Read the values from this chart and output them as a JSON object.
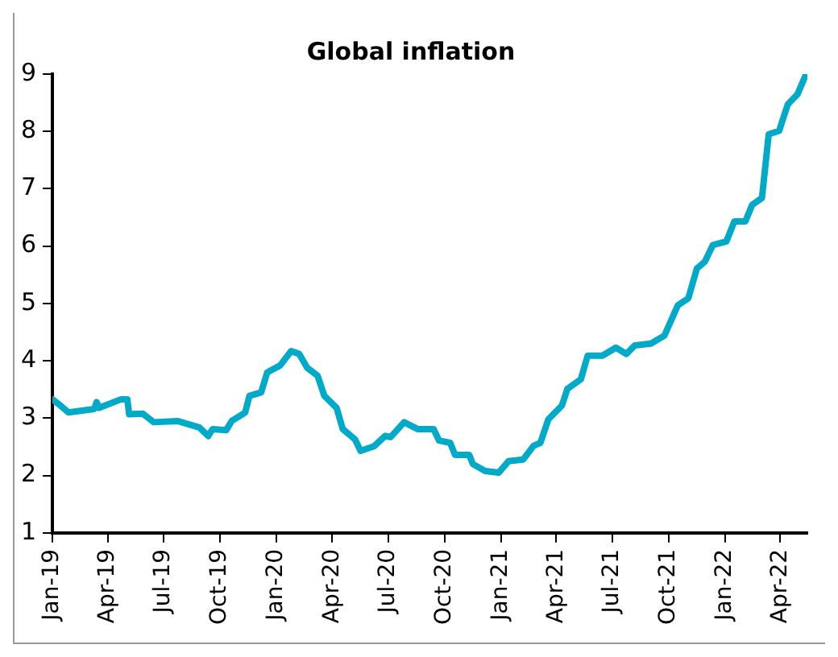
{
  "chart_data": {
    "type": "line",
    "title": "Global inflation",
    "x": [
      "2019-01-01",
      "2019-01-14",
      "2019-01-27",
      "2019-03-10",
      "2019-03-14",
      "2019-03-18",
      "2019-04-23",
      "2019-05-03",
      "2019-05-06",
      "2019-05-28",
      "2019-06-15",
      "2019-07-24",
      "2019-08-28",
      "2019-09-12",
      "2019-09-19",
      "2019-10-11",
      "2019-10-20",
      "2019-11-11",
      "2019-11-18",
      "2019-12-07",
      "2019-12-17",
      "2020-01-07",
      "2020-01-25",
      "2020-02-07",
      "2020-02-20",
      "2020-03-08",
      "2020-03-19",
      "2020-04-08",
      "2020-04-18",
      "2020-05-08",
      "2020-05-17",
      "2020-06-08",
      "2020-06-26",
      "2020-07-05",
      "2020-07-27",
      "2020-08-18",
      "2020-09-13",
      "2020-09-22",
      "2020-10-10",
      "2020-10-18",
      "2020-11-10",
      "2020-11-16",
      "2020-12-06",
      "2020-12-28",
      "2021-01-13",
      "2021-02-06",
      "2021-02-23",
      "2021-03-06",
      "2021-03-19",
      "2021-04-10",
      "2021-04-19",
      "2021-05-11",
      "2021-05-22",
      "2021-06-15",
      "2021-07-07",
      "2021-07-24",
      "2021-08-07",
      "2021-09-02",
      "2021-09-24",
      "2021-10-16",
      "2021-11-02",
      "2021-11-16",
      "2021-11-29",
      "2021-12-12",
      "2022-01-03",
      "2022-01-16",
      "2022-02-03",
      "2022-02-14",
      "2022-03-02",
      "2022-03-13",
      "2022-03-30",
      "2022-04-13",
      "2022-04-29",
      "2022-05-13"
    ],
    "series": [
      {
        "color": "#00aac8",
        "values": [
          3.33,
          3.22,
          3.1,
          3.16,
          3.28,
          3.18,
          3.33,
          3.33,
          3.07,
          3.08,
          2.93,
          2.95,
          2.84,
          2.69,
          2.81,
          2.79,
          2.95,
          3.1,
          3.39,
          3.45,
          3.8,
          3.92,
          4.17,
          4.12,
          3.88,
          3.74,
          3.39,
          3.18,
          2.81,
          2.63,
          2.43,
          2.51,
          2.69,
          2.67,
          2.93,
          2.81,
          2.81,
          2.61,
          2.57,
          2.36,
          2.36,
          2.2,
          2.08,
          2.05,
          2.25,
          2.28,
          2.52,
          2.57,
          2.98,
          3.22,
          3.51,
          3.68,
          4.09,
          4.09,
          4.23,
          4.12,
          4.27,
          4.3,
          4.44,
          4.97,
          5.09,
          5.61,
          5.73,
          6.02,
          6.08,
          6.43,
          6.43,
          6.72,
          6.84,
          7.95,
          8.01,
          8.47,
          8.65,
          9.0
        ]
      }
    ],
    "xlim": [
      "2019-01-01",
      "2022-05-15"
    ],
    "xticks": [
      {
        "value": "2019-01-01",
        "label": "Jan-19"
      },
      {
        "value": "2019-04-01",
        "label": "Apr-19"
      },
      {
        "value": "2019-07-01",
        "label": "Jul-19"
      },
      {
        "value": "2019-10-01",
        "label": "Oct-19"
      },
      {
        "value": "2020-01-01",
        "label": "Jan-20"
      },
      {
        "value": "2020-04-01",
        "label": "Apr-20"
      },
      {
        "value": "2020-07-01",
        "label": "Jul-20"
      },
      {
        "value": "2020-10-01",
        "label": "Oct-20"
      },
      {
        "value": "2021-01-01",
        "label": "Jan-21"
      },
      {
        "value": "2021-04-01",
        "label": "Apr-21"
      },
      {
        "value": "2021-07-01",
        "label": "Jul-21"
      },
      {
        "value": "2021-10-01",
        "label": "Oct-21"
      },
      {
        "value": "2022-01-01",
        "label": "Jan-22"
      },
      {
        "value": "2022-04-01",
        "label": "Apr-22"
      }
    ],
    "ylim": [
      1,
      9
    ],
    "yticks": [
      1,
      2,
      3,
      4,
      5,
      6,
      7,
      8,
      9
    ],
    "grid": false,
    "legend": false,
    "marker": "none",
    "line_style": "solid"
  }
}
